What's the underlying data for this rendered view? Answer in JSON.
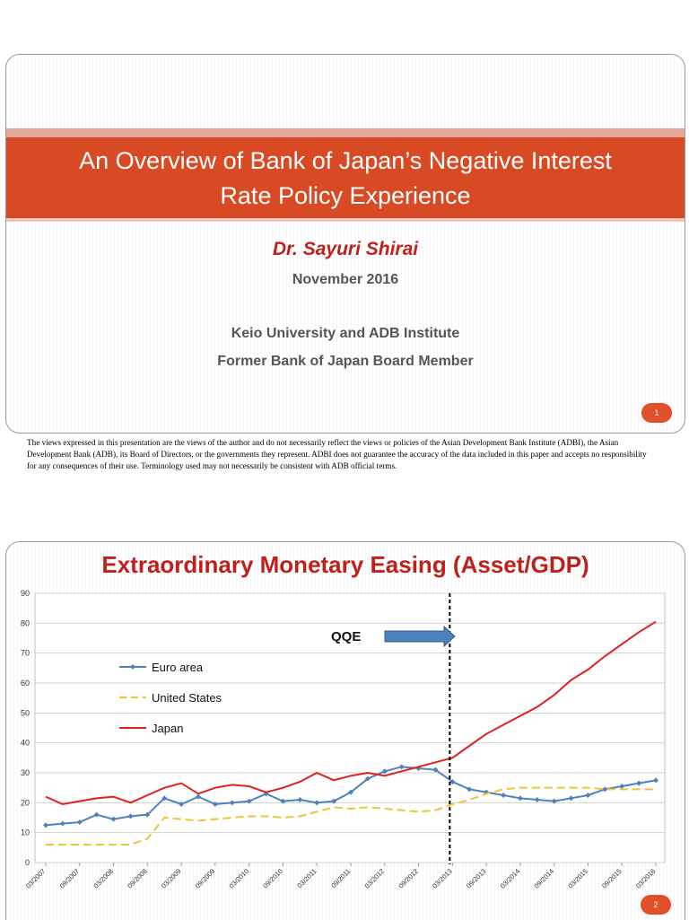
{
  "slide1": {
    "title_line1": "An Overview of Bank of Japan’s Negative Interest",
    "title_line2": "Rate Policy Experience",
    "author": "Dr. Sayuri Shirai",
    "date": "November 2016",
    "affiliation1": "Keio University and ADB Institute",
    "affiliation2": "Former Bank of Japan Board Member",
    "page_number": "1"
  },
  "disclaimer": "The views expressed in this presentation are the views of the author and do not necessarily reflect the views or policies of the Asian Development Bank Institute (ADBI), the Asian Development Bank (ADB), its Board of Directors, or the governments they represent. ADBI does not guarantee the accuracy of the data included in this paper and accepts no responsibility for any consequences of their use. Terminology used may not necessarily be consistent with ADB official terms.",
  "slide2": {
    "title": "Extraordinary Monetary Easing (Asset/GDP)",
    "page_number": "2"
  },
  "colors": {
    "accent": "#d84a24",
    "title_red": "#c0201b",
    "euro": "#4f81bd",
    "us": "#f2c231",
    "japan": "#e02020"
  },
  "chart_data": {
    "type": "line",
    "ylim": [
      0,
      90
    ],
    "yticks": [
      0,
      10,
      20,
      30,
      40,
      50,
      60,
      70,
      80,
      90
    ],
    "grid": true,
    "legend_position": "left",
    "xtick_labels": [
      "03/2007",
      "09/2007",
      "03/2008",
      "09/2008",
      "03/2009",
      "09/2009",
      "03/2010",
      "09/2010",
      "03/2011",
      "09/2011",
      "03/2012",
      "09/2012",
      "03/2013",
      "09/2013",
      "03/2014",
      "09/2014",
      "03/2015",
      "09/2015",
      "03/2016"
    ],
    "annotation": {
      "text": "QQE",
      "at_index": 24
    },
    "series": [
      {
        "name": "Euro area",
        "style": "line-markers",
        "color": "#4f81bd",
        "values": [
          12.5,
          13,
          13.5,
          16,
          14.5,
          15.5,
          16,
          21.5,
          19.5,
          22,
          19.5,
          20,
          20.5,
          23,
          20.5,
          21,
          20,
          20.5,
          23.5,
          28,
          30.5,
          32,
          31.5,
          31,
          27,
          24.5,
          23.5,
          22.5,
          21.5,
          21,
          20.5,
          21.5,
          22.5,
          24.5,
          25.5,
          26.5,
          27.5
        ]
      },
      {
        "name": "United States",
        "style": "dashed",
        "color": "#f2c231",
        "values": [
          6,
          6,
          6,
          6,
          6,
          6,
          8,
          15,
          14.5,
          14,
          14.5,
          15,
          15.5,
          15.5,
          15,
          15.5,
          17,
          18.5,
          18,
          18.5,
          18,
          17.5,
          17,
          17.5,
          19.5,
          21,
          23,
          24.5,
          25,
          25,
          25,
          25,
          25,
          24.5,
          24.5,
          24.5,
          24.5
        ]
      },
      {
        "name": "Japan",
        "style": "solid",
        "color": "#e02020",
        "values": [
          22,
          19.5,
          20.5,
          21.5,
          22,
          20,
          22.5,
          25,
          26.5,
          23,
          25,
          26,
          25.5,
          23.5,
          25,
          27,
          30,
          27.5,
          29,
          30,
          29,
          30.5,
          32,
          33.5,
          35,
          39,
          43,
          46,
          49,
          52,
          56,
          61,
          64.5,
          69,
          73,
          77,
          80.5
        ]
      }
    ]
  }
}
